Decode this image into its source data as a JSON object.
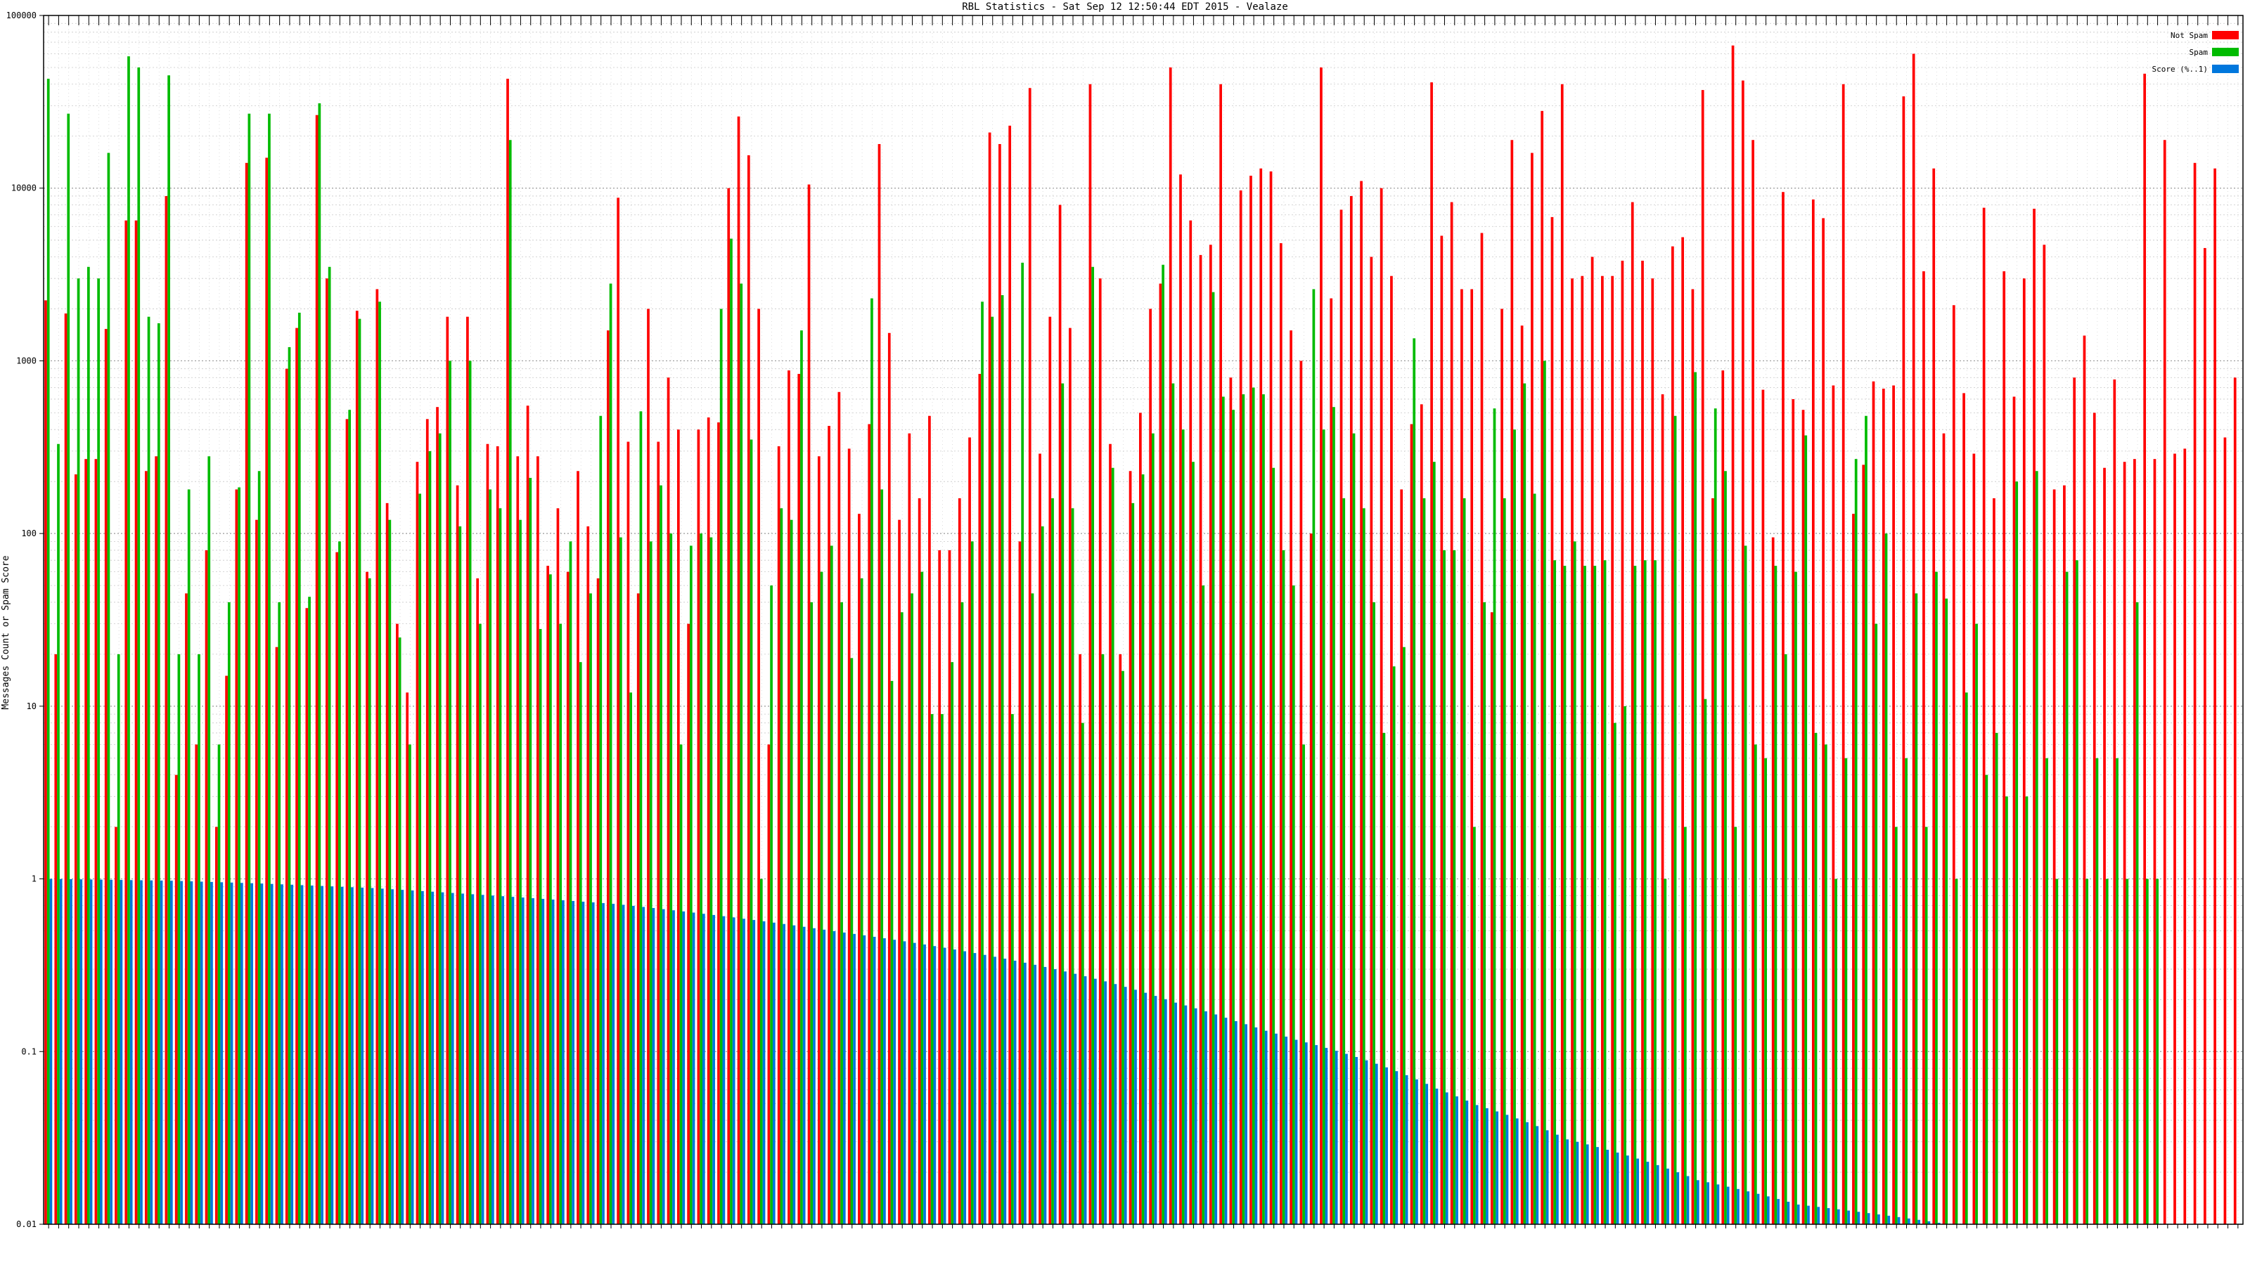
{
  "chart_data": {
    "type": "bar",
    "title": "RBL Statistics - Sat Sep 12 12:50:44 EDT 2015 - Vealaze",
    "ylabel": "Messages Count or Spam Score",
    "xlabel": "",
    "yscale": "log",
    "ylim": [
      0.01,
      100000
    ],
    "y_ticks": [
      0.01,
      0.1,
      1,
      10,
      100,
      1000,
      10000,
      100000
    ],
    "y_tick_labels": [
      "0.01",
      "0.1",
      "1",
      "10",
      "100",
      "1000",
      "10000",
      "100000"
    ],
    "grid": true,
    "legend_position": "top-right",
    "series": [
      {
        "name": "Not Spam",
        "color": "#ff0000",
        "values": [
          2240,
          20,
          1880,
          220,
          270,
          270,
          1530,
          2,
          6500,
          6500,
          230,
          280,
          9000,
          4,
          45,
          6,
          80,
          2,
          15,
          180,
          14000,
          120,
          15000,
          22,
          900,
          1550,
          37,
          26500,
          3000,
          78,
          460,
          1950,
          60,
          2600,
          150,
          30,
          12,
          260,
          460,
          540,
          1800,
          190,
          1800,
          55,
          330,
          320,
          43000,
          280,
          550,
          280,
          65,
          140,
          60,
          230,
          110,
          55,
          1500,
          8800,
          340,
          45,
          2000,
          340,
          800,
          400,
          30,
          400,
          470,
          440,
          10000,
          26000,
          15500,
          2000,
          6,
          320,
          880,
          840,
          10500,
          280,
          420,
          660,
          310,
          130,
          430,
          18000,
          1450,
          120,
          380,
          160,
          480,
          80,
          80,
          160,
          360,
          840,
          21000,
          18000,
          23000,
          90,
          38000,
          290,
          1800,
          8000,
          1550,
          20,
          40000,
          3000,
          330,
          20,
          230,
          500,
          2000,
          2800,
          50000,
          12000,
          6500,
          4100,
          4700,
          40000,
          800,
          9700,
          11800,
          13000,
          12500,
          4800,
          1500,
          1000,
          100,
          50000,
          2300,
          7500,
          9000,
          11000,
          4000,
          10000,
          3100,
          180,
          430,
          560,
          41000,
          5300,
          8300,
          2600,
          2600,
          5500,
          35,
          2000,
          19000,
          1600,
          16000,
          28000,
          6800,
          40000,
          3000,
          3100,
          4000,
          3100,
          3100,
          3800,
          8300,
          3800,
          3000,
          640,
          4600,
          5200,
          2600,
          37000,
          160,
          880,
          67000,
          42000,
          19000,
          680,
          95,
          9500,
          600,
          520,
          8600,
          6700,
          720,
          40000,
          130,
          250,
          760,
          690,
          720,
          34000,
          60000,
          3300,
          13000,
          380,
          2100,
          650,
          290,
          7700,
          160,
          3300,
          620,
          3000,
          7600,
          4700,
          180,
          190,
          800,
          1400,
          500,
          240,
          780,
          260,
          270,
          46000,
          270,
          19000,
          290,
          310,
          14000,
          4500,
          13000,
          360,
          800
        ]
      },
      {
        "name": "Spam",
        "color": "#00bb00",
        "values": [
          43000,
          330,
          27000,
          3000,
          3500,
          3000,
          16000,
          20,
          58000,
          50000,
          1800,
          1650,
          45000,
          20,
          180,
          20,
          280,
          6,
          40,
          185,
          27000,
          230,
          27000,
          40,
          1200,
          1900,
          43,
          31000,
          3500,
          90,
          520,
          1750,
          55,
          2200,
          120,
          25,
          6,
          170,
          300,
          380,
          1000,
          110,
          1000,
          30,
          180,
          140,
          19000,
          120,
          210,
          28,
          58,
          30,
          90,
          18,
          45,
          480,
          2800,
          95,
          12,
          510,
          90,
          190,
          100,
          6,
          85,
          100,
          95,
          2000,
          5100,
          2800,
          350,
          1,
          50,
          140,
          120,
          1500,
          40,
          60,
          85,
          40,
          19,
          55,
          2300,
          180,
          14,
          35,
          45,
          60,
          9,
          9,
          18,
          40,
          90,
          2200,
          1800,
          2400,
          9,
          3700,
          45,
          110,
          160,
          740,
          140,
          8,
          3500,
          20,
          240,
          16,
          150,
          220,
          380,
          3600,
          740,
          400,
          260,
          50,
          2500,
          620,
          520,
          640,
          700,
          640,
          240,
          80,
          50,
          6,
          2600,
          400,
          540,
          160,
          380,
          140,
          40,
          7,
          17,
          22,
          1350,
          160,
          260,
          80,
          80,
          160,
          2,
          40,
          530,
          160,
          400,
          740,
          170,
          1000,
          70,
          65,
          90,
          65,
          65,
          70,
          8,
          10,
          65,
          70,
          70,
          1,
          480,
          2,
          860,
          11,
          530,
          230,
          2,
          85,
          6,
          5,
          65,
          20,
          60,
          370,
          7,
          6,
          1,
          5,
          270,
          480,
          30,
          100,
          2,
          5,
          45,
          2,
          60,
          42,
          1,
          12,
          30,
          4,
          7,
          3,
          200,
          3,
          230,
          5,
          1,
          60,
          70,
          1,
          5,
          1,
          5,
          1,
          40,
          1,
          1
        ]
      },
      {
        "name": "Score (%..1)",
        "color": "#0077dd",
        "values": [
          1.0,
          0.998,
          0.996,
          0.994,
          0.992,
          0.99,
          0.988,
          0.986,
          0.984,
          0.982,
          0.98,
          0.978,
          0.976,
          0.972,
          0.968,
          0.964,
          0.96,
          0.956,
          0.952,
          0.948,
          0.944,
          0.94,
          0.935,
          0.93,
          0.925,
          0.92,
          0.915,
          0.91,
          0.905,
          0.9,
          0.895,
          0.89,
          0.885,
          0.878,
          0.871,
          0.864,
          0.857,
          0.85,
          0.843,
          0.836,
          0.829,
          0.822,
          0.815,
          0.808,
          0.801,
          0.794,
          0.787,
          0.78,
          0.773,
          0.766,
          0.759,
          0.752,
          0.745,
          0.738,
          0.731,
          0.724,
          0.717,
          0.708,
          0.698,
          0.688,
          0.678,
          0.668,
          0.658,
          0.648,
          0.638,
          0.628,
          0.618,
          0.608,
          0.598,
          0.588,
          0.578,
          0.568,
          0.558,
          0.548,
          0.538,
          0.528,
          0.518,
          0.508,
          0.498,
          0.489,
          0.48,
          0.471,
          0.462,
          0.453,
          0.444,
          0.435,
          0.426,
          0.417,
          0.408,
          0.399,
          0.39,
          0.381,
          0.372,
          0.363,
          0.354,
          0.345,
          0.336,
          0.327,
          0.318,
          0.309,
          0.3,
          0.291,
          0.282,
          0.273,
          0.264,
          0.255,
          0.246,
          0.237,
          0.228,
          0.219,
          0.21,
          0.201,
          0.192,
          0.185,
          0.178,
          0.171,
          0.164,
          0.157,
          0.15,
          0.144,
          0.138,
          0.132,
          0.127,
          0.122,
          0.117,
          0.113,
          0.109,
          0.105,
          0.101,
          0.097,
          0.093,
          0.089,
          0.085,
          0.081,
          0.077,
          0.073,
          0.069,
          0.065,
          0.061,
          0.058,
          0.055,
          0.052,
          0.049,
          0.047,
          0.045,
          0.043,
          0.041,
          0.039,
          0.037,
          0.035,
          0.033,
          0.031,
          0.03,
          0.029,
          0.028,
          0.027,
          0.026,
          0.025,
          0.024,
          0.023,
          0.022,
          0.021,
          0.02,
          0.019,
          0.018,
          0.0175,
          0.017,
          0.0165,
          0.016,
          0.0155,
          0.015,
          0.0145,
          0.014,
          0.0135,
          0.013,
          0.0128,
          0.0126,
          0.0124,
          0.0122,
          0.012,
          0.0118,
          0.0116,
          0.0114,
          0.0112,
          0.011,
          0.0108,
          0.0106,
          0.0104,
          0.0102,
          0.01,
          0.0099,
          0.0098,
          0.0097,
          0.0096,
          0.0095,
          0.0094,
          0.0093,
          0.0092,
          0.0091,
          0.009,
          0.0089,
          0.0088,
          0.0087,
          0.0086,
          0.0085,
          0.0084,
          0.0083,
          0.0082,
          0.0081,
          0.008,
          0.0079,
          0.0078,
          0.0077,
          0.0076,
          0.0075,
          0.0074
        ]
      }
    ]
  }
}
